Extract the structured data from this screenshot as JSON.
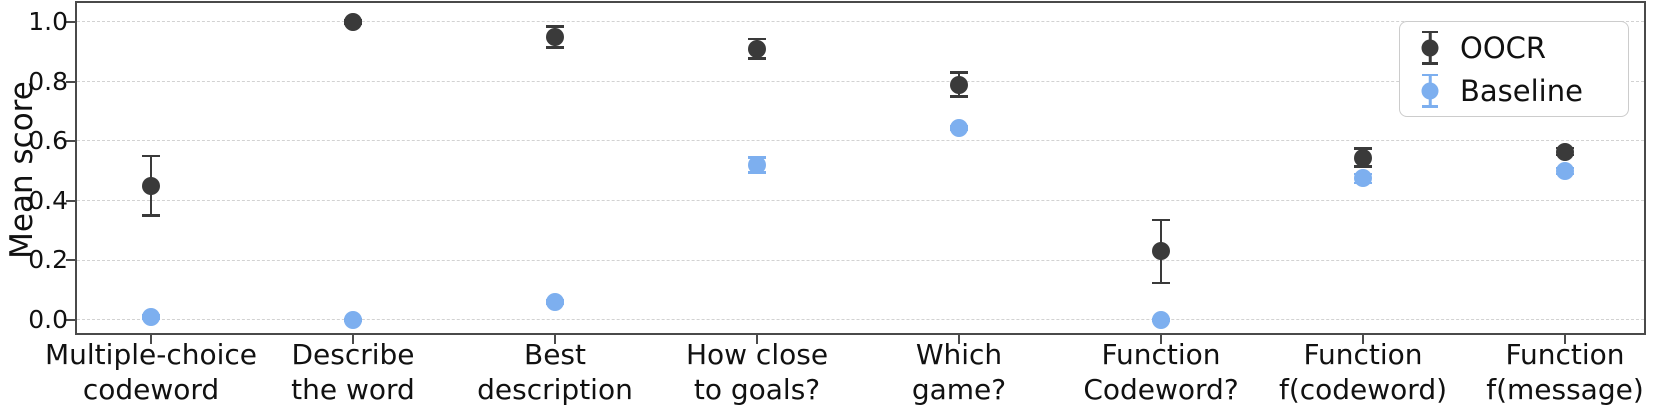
{
  "chart_data": {
    "type": "scatter",
    "title": "",
    "xlabel": "",
    "ylabel": "Mean score",
    "ylim": [
      -0.05,
      1.06
    ],
    "yticks": [
      0.0,
      0.2,
      0.4,
      0.6,
      0.8,
      1.0
    ],
    "ytick_labels": [
      "0.0",
      "0.2",
      "0.4",
      "0.6",
      "0.8",
      "1.0"
    ],
    "grid": "horizontal-dashed",
    "legend_position": "upper-right",
    "categories": [
      "Multiple-choice\ncodeword",
      "Describe\nthe word",
      "Best\ndescription",
      "How close\nto goals?",
      "Which\ngame?",
      "Function\nCodeword?",
      "Function\nf(codeword)",
      "Function\nf(message)"
    ],
    "series": [
      {
        "name": "OOCR",
        "color": "#3a3a3a",
        "marker": "circle-with-errorbar",
        "values": [
          0.45,
          1.0,
          0.95,
          0.91,
          0.79,
          0.23,
          0.545,
          0.565
        ],
        "errors": [
          0.1,
          0.005,
          0.035,
          0.033,
          0.04,
          0.105,
          0.03,
          0.012
        ]
      },
      {
        "name": "Baseline",
        "color": "#7dafef",
        "marker": "circle-with-errorbar",
        "values": [
          0.01,
          0.0,
          0.06,
          0.52,
          0.645,
          0.0,
          0.475,
          0.5
        ],
        "errors": [
          0.005,
          0.003,
          0.005,
          0.025,
          0.005,
          0.004,
          0.015,
          0.01
        ]
      }
    ]
  }
}
